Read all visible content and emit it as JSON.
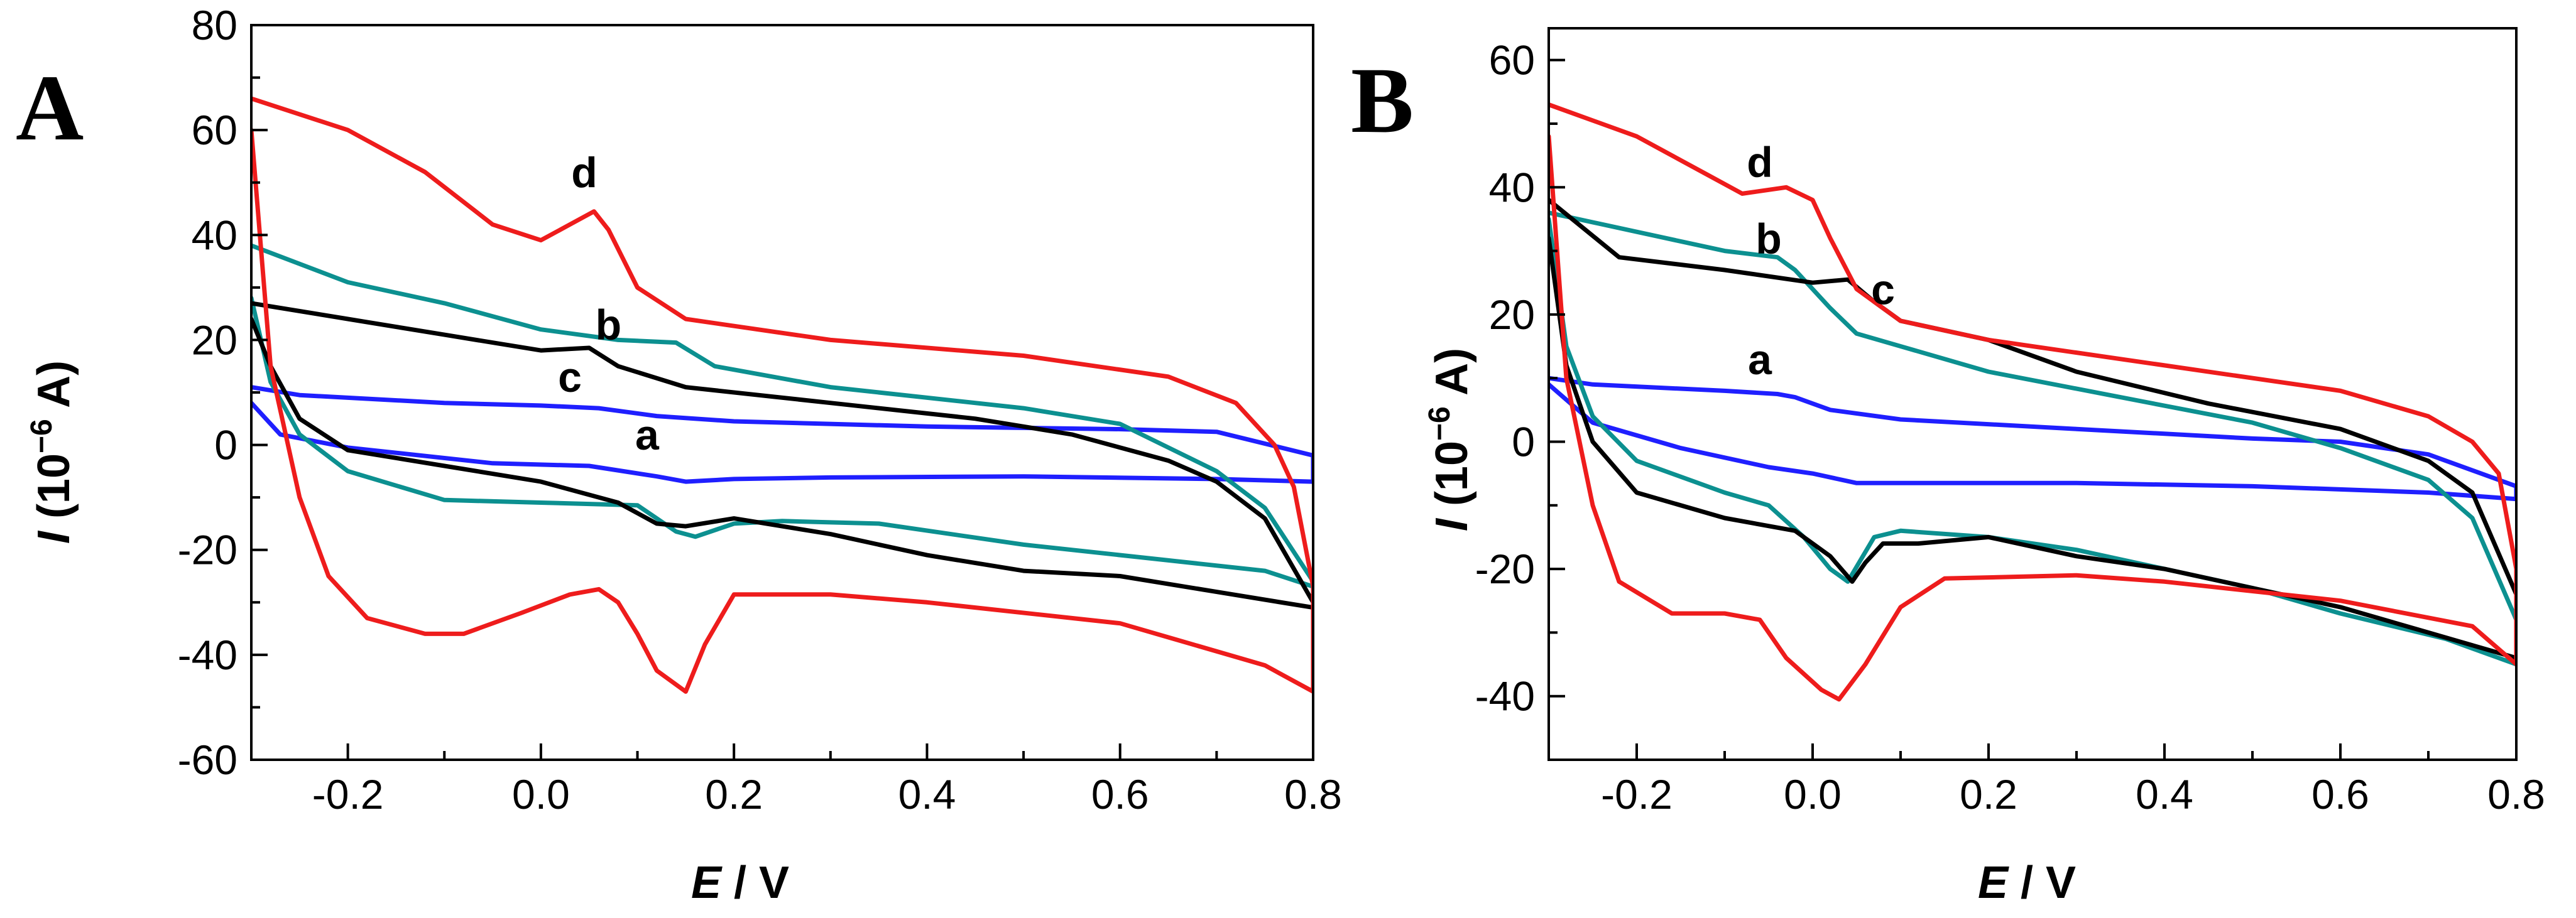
{
  "chart_data": [
    {
      "type": "line",
      "panel_label": "A",
      "title": "",
      "xlabel": {
        "var": "E",
        "unit": " / V"
      },
      "ylabel": {
        "var": "I",
        "open": " (10",
        "exp": "−6",
        "close": " A)"
      },
      "xlim": [
        -0.3,
        0.8
      ],
      "ylim": [
        -60,
        80
      ],
      "xticks": [
        -0.2,
        0.0,
        0.2,
        0.4,
        0.6,
        0.8
      ],
      "xtick_labels": [
        "-0.2",
        "0.0",
        "0.2",
        "0.4",
        "0.6",
        "0.8"
      ],
      "yticks": [
        -60,
        -40,
        -20,
        0,
        20,
        40,
        60,
        80
      ],
      "ytick_labels": [
        "-60",
        "-40",
        "-20",
        "0",
        "20",
        "40",
        "60",
        "80"
      ],
      "series": [
        {
          "name": "a",
          "color": "#1f1fff",
          "label_at": [
            0.11,
            2
          ],
          "points": [
            [
              -0.3,
              11
            ],
            [
              -0.25,
              9.5
            ],
            [
              -0.1,
              8
            ],
            [
              0.0,
              7.5
            ],
            [
              0.06,
              7
            ],
            [
              0.12,
              5.5
            ],
            [
              0.2,
              4.5
            ],
            [
              0.4,
              3.5
            ],
            [
              0.6,
              3
            ],
            [
              0.7,
              2.5
            ],
            [
              0.8,
              -2
            ],
            [
              0.8,
              -7
            ],
            [
              0.7,
              -6.5
            ],
            [
              0.5,
              -6
            ],
            [
              0.3,
              -6.2
            ],
            [
              0.2,
              -6.5
            ],
            [
              0.15,
              -7
            ],
            [
              0.12,
              -6
            ],
            [
              0.05,
              -4
            ],
            [
              -0.05,
              -3.5
            ],
            [
              -0.2,
              -0.5
            ],
            [
              -0.27,
              2
            ],
            [
              -0.3,
              8
            ]
          ]
        },
        {
          "name": "b",
          "color": "#0c9090",
          "label_at": [
            0.07,
            23
          ],
          "points": [
            [
              -0.3,
              38
            ],
            [
              -0.2,
              31
            ],
            [
              -0.1,
              27
            ],
            [
              0.0,
              22
            ],
            [
              0.08,
              20
            ],
            [
              0.14,
              19.5
            ],
            [
              0.18,
              15
            ],
            [
              0.3,
              11
            ],
            [
              0.5,
              7
            ],
            [
              0.6,
              4
            ],
            [
              0.7,
              -5
            ],
            [
              0.75,
              -12
            ],
            [
              0.8,
              -26
            ],
            [
              0.8,
              -27
            ],
            [
              0.75,
              -24
            ],
            [
              0.65,
              -22
            ],
            [
              0.5,
              -19
            ],
            [
              0.35,
              -15
            ],
            [
              0.25,
              -14.5
            ],
            [
              0.2,
              -15
            ],
            [
              0.16,
              -17.5
            ],
            [
              0.14,
              -16.5
            ],
            [
              0.1,
              -11.5
            ],
            [
              0.0,
              -11
            ],
            [
              -0.1,
              -10.5
            ],
            [
              -0.2,
              -5
            ],
            [
              -0.25,
              2
            ],
            [
              -0.28,
              12
            ],
            [
              -0.3,
              28
            ]
          ]
        },
        {
          "name": "c",
          "color": "#000000",
          "label_at": [
            0.03,
            13
          ],
          "points": [
            [
              -0.3,
              27
            ],
            [
              -0.2,
              24
            ],
            [
              -0.1,
              21
            ],
            [
              0.0,
              18
            ],
            [
              0.05,
              18.5
            ],
            [
              0.08,
              15
            ],
            [
              0.15,
              11
            ],
            [
              0.3,
              8
            ],
            [
              0.45,
              5
            ],
            [
              0.55,
              2
            ],
            [
              0.65,
              -3
            ],
            [
              0.7,
              -7
            ],
            [
              0.75,
              -14
            ],
            [
              0.8,
              -30
            ],
            [
              0.8,
              -31
            ],
            [
              0.7,
              -28
            ],
            [
              0.6,
              -25
            ],
            [
              0.5,
              -24
            ],
            [
              0.4,
              -21
            ],
            [
              0.3,
              -17
            ],
            [
              0.2,
              -14
            ],
            [
              0.15,
              -15.5
            ],
            [
              0.12,
              -15
            ],
            [
              0.08,
              -11
            ],
            [
              0.0,
              -7
            ],
            [
              -0.1,
              -4
            ],
            [
              -0.2,
              -1
            ],
            [
              -0.25,
              5
            ],
            [
              -0.28,
              15
            ],
            [
              -0.3,
              24
            ]
          ]
        },
        {
          "name": "d",
          "color": "#ee1c1c",
          "label_at": [
            0.045,
            52
          ],
          "points": [
            [
              -0.3,
              66
            ],
            [
              -0.2,
              60
            ],
            [
              -0.12,
              52
            ],
            [
              -0.05,
              42
            ],
            [
              0.0,
              39
            ],
            [
              0.03,
              42
            ],
            [
              0.055,
              44.5
            ],
            [
              0.07,
              41
            ],
            [
              0.1,
              30
            ],
            [
              0.15,
              24
            ],
            [
              0.3,
              20
            ],
            [
              0.5,
              17
            ],
            [
              0.65,
              13
            ],
            [
              0.72,
              8
            ],
            [
              0.76,
              0
            ],
            [
              0.78,
              -8
            ],
            [
              0.8,
              -27
            ],
            [
              0.8,
              -47
            ],
            [
              0.75,
              -42
            ],
            [
              0.6,
              -34
            ],
            [
              0.4,
              -30
            ],
            [
              0.3,
              -28.5
            ],
            [
              0.2,
              -28.5
            ],
            [
              0.17,
              -38
            ],
            [
              0.15,
              -47
            ],
            [
              0.12,
              -43
            ],
            [
              0.1,
              -36
            ],
            [
              0.08,
              -30
            ],
            [
              0.06,
              -27.5
            ],
            [
              0.03,
              -28.5
            ],
            [
              -0.02,
              -32
            ],
            [
              -0.08,
              -36
            ],
            [
              -0.12,
              -36
            ],
            [
              -0.18,
              -33
            ],
            [
              -0.22,
              -25
            ],
            [
              -0.25,
              -10
            ],
            [
              -0.28,
              15
            ],
            [
              -0.3,
              60
            ]
          ]
        }
      ]
    },
    {
      "type": "line",
      "panel_label": "B",
      "title": "",
      "xlabel": {
        "var": "E",
        "unit": " / V"
      },
      "ylabel": {
        "var": "I",
        "open": " (10",
        "exp": "−6",
        "close": " A)"
      },
      "xlim": [
        -0.3,
        0.8
      ],
      "ylim": [
        -50,
        65
      ],
      "xticks": [
        -0.2,
        0.0,
        0.2,
        0.4,
        0.6,
        0.8
      ],
      "xtick_labels": [
        "-0.2",
        "0.0",
        "0.2",
        "0.4",
        "0.6",
        "0.8"
      ],
      "yticks": [
        -40,
        -20,
        0,
        20,
        40,
        60
      ],
      "ytick_labels": [
        "-40",
        "-20",
        "0",
        "20",
        "40",
        "60"
      ],
      "series": [
        {
          "name": "a",
          "color": "#1f1fff",
          "label_at": [
            -0.06,
            13
          ],
          "points": [
            [
              -0.3,
              10
            ],
            [
              -0.25,
              9
            ],
            [
              -0.1,
              8
            ],
            [
              -0.04,
              7.5
            ],
            [
              -0.02,
              7
            ],
            [
              0.02,
              5
            ],
            [
              0.1,
              3.5
            ],
            [
              0.3,
              2
            ],
            [
              0.5,
              0.5
            ],
            [
              0.6,
              0
            ],
            [
              0.7,
              -2
            ],
            [
              0.8,
              -7
            ],
            [
              0.8,
              -9
            ],
            [
              0.7,
              -8
            ],
            [
              0.5,
              -7
            ],
            [
              0.3,
              -6.5
            ],
            [
              0.1,
              -6.5
            ],
            [
              0.05,
              -6.5
            ],
            [
              0.0,
              -5
            ],
            [
              -0.05,
              -4
            ],
            [
              -0.15,
              -1
            ],
            [
              -0.25,
              3
            ],
            [
              -0.3,
              9
            ]
          ]
        },
        {
          "name": "b",
          "color": "#0c9090",
          "label_at": [
            -0.05,
            32
          ],
          "points": [
            [
              -0.3,
              36
            ],
            [
              -0.2,
              33
            ],
            [
              -0.1,
              30
            ],
            [
              -0.04,
              29
            ],
            [
              -0.02,
              27
            ],
            [
              0.02,
              21
            ],
            [
              0.05,
              17
            ],
            [
              0.1,
              15
            ],
            [
              0.2,
              11
            ],
            [
              0.35,
              7
            ],
            [
              0.5,
              3
            ],
            [
              0.6,
              -1
            ],
            [
              0.7,
              -6
            ],
            [
              0.75,
              -12
            ],
            [
              0.8,
              -28
            ],
            [
              0.8,
              -35
            ],
            [
              0.72,
              -31
            ],
            [
              0.6,
              -27
            ],
            [
              0.5,
              -23
            ],
            [
              0.4,
              -20
            ],
            [
              0.3,
              -17
            ],
            [
              0.2,
              -15
            ],
            [
              0.1,
              -14
            ],
            [
              0.07,
              -15
            ],
            [
              0.04,
              -22
            ],
            [
              0.02,
              -20
            ],
            [
              -0.01,
              -15
            ],
            [
              -0.05,
              -10
            ],
            [
              -0.1,
              -8
            ],
            [
              -0.2,
              -3
            ],
            [
              -0.25,
              4
            ],
            [
              -0.28,
              15
            ],
            [
              -0.3,
              35
            ]
          ]
        },
        {
          "name": "c",
          "color": "#000000",
          "label_at": [
            0.08,
            24
          ],
          "points": [
            [
              -0.3,
              38
            ],
            [
              -0.22,
              29
            ],
            [
              -0.1,
              27
            ],
            [
              0.0,
              25
            ],
            [
              0.04,
              25.5
            ],
            [
              0.07,
              22
            ],
            [
              0.1,
              19
            ],
            [
              0.2,
              16
            ],
            [
              0.3,
              11
            ],
            [
              0.45,
              6
            ],
            [
              0.6,
              2
            ],
            [
              0.7,
              -3
            ],
            [
              0.75,
              -8
            ],
            [
              0.8,
              -24
            ],
            [
              0.8,
              -34
            ],
            [
              0.7,
              -30
            ],
            [
              0.6,
              -26
            ],
            [
              0.5,
              -23
            ],
            [
              0.4,
              -20
            ],
            [
              0.3,
              -18
            ],
            [
              0.2,
              -15
            ],
            [
              0.12,
              -16
            ],
            [
              0.08,
              -16
            ],
            [
              0.06,
              -19
            ],
            [
              0.045,
              -22
            ],
            [
              0.02,
              -18
            ],
            [
              -0.02,
              -14
            ],
            [
              -0.1,
              -12
            ],
            [
              -0.2,
              -8
            ],
            [
              -0.25,
              0
            ],
            [
              -0.28,
              12
            ],
            [
              -0.3,
              32
            ]
          ]
        },
        {
          "name": "d",
          "color": "#ee1c1c",
          "label_at": [
            -0.06,
            44
          ],
          "points": [
            [
              -0.3,
              53
            ],
            [
              -0.2,
              48
            ],
            [
              -0.12,
              42
            ],
            [
              -0.08,
              39
            ],
            [
              -0.03,
              40
            ],
            [
              0.0,
              38
            ],
            [
              0.02,
              32
            ],
            [
              0.05,
              24
            ],
            [
              0.1,
              19
            ],
            [
              0.2,
              16
            ],
            [
              0.4,
              12
            ],
            [
              0.6,
              8
            ],
            [
              0.7,
              4
            ],
            [
              0.75,
              0
            ],
            [
              0.78,
              -5
            ],
            [
              0.8,
              -20
            ],
            [
              0.8,
              -35
            ],
            [
              0.75,
              -29
            ],
            [
              0.6,
              -25
            ],
            [
              0.4,
              -22
            ],
            [
              0.3,
              -21
            ],
            [
              0.15,
              -21.5
            ],
            [
              0.1,
              -26
            ],
            [
              0.06,
              -35
            ],
            [
              0.03,
              -40.5
            ],
            [
              0.01,
              -39
            ],
            [
              -0.03,
              -34
            ],
            [
              -0.06,
              -28
            ],
            [
              -0.1,
              -27
            ],
            [
              -0.16,
              -27
            ],
            [
              -0.22,
              -22
            ],
            [
              -0.25,
              -10
            ],
            [
              -0.28,
              10
            ],
            [
              -0.3,
              48
            ]
          ]
        }
      ]
    }
  ]
}
